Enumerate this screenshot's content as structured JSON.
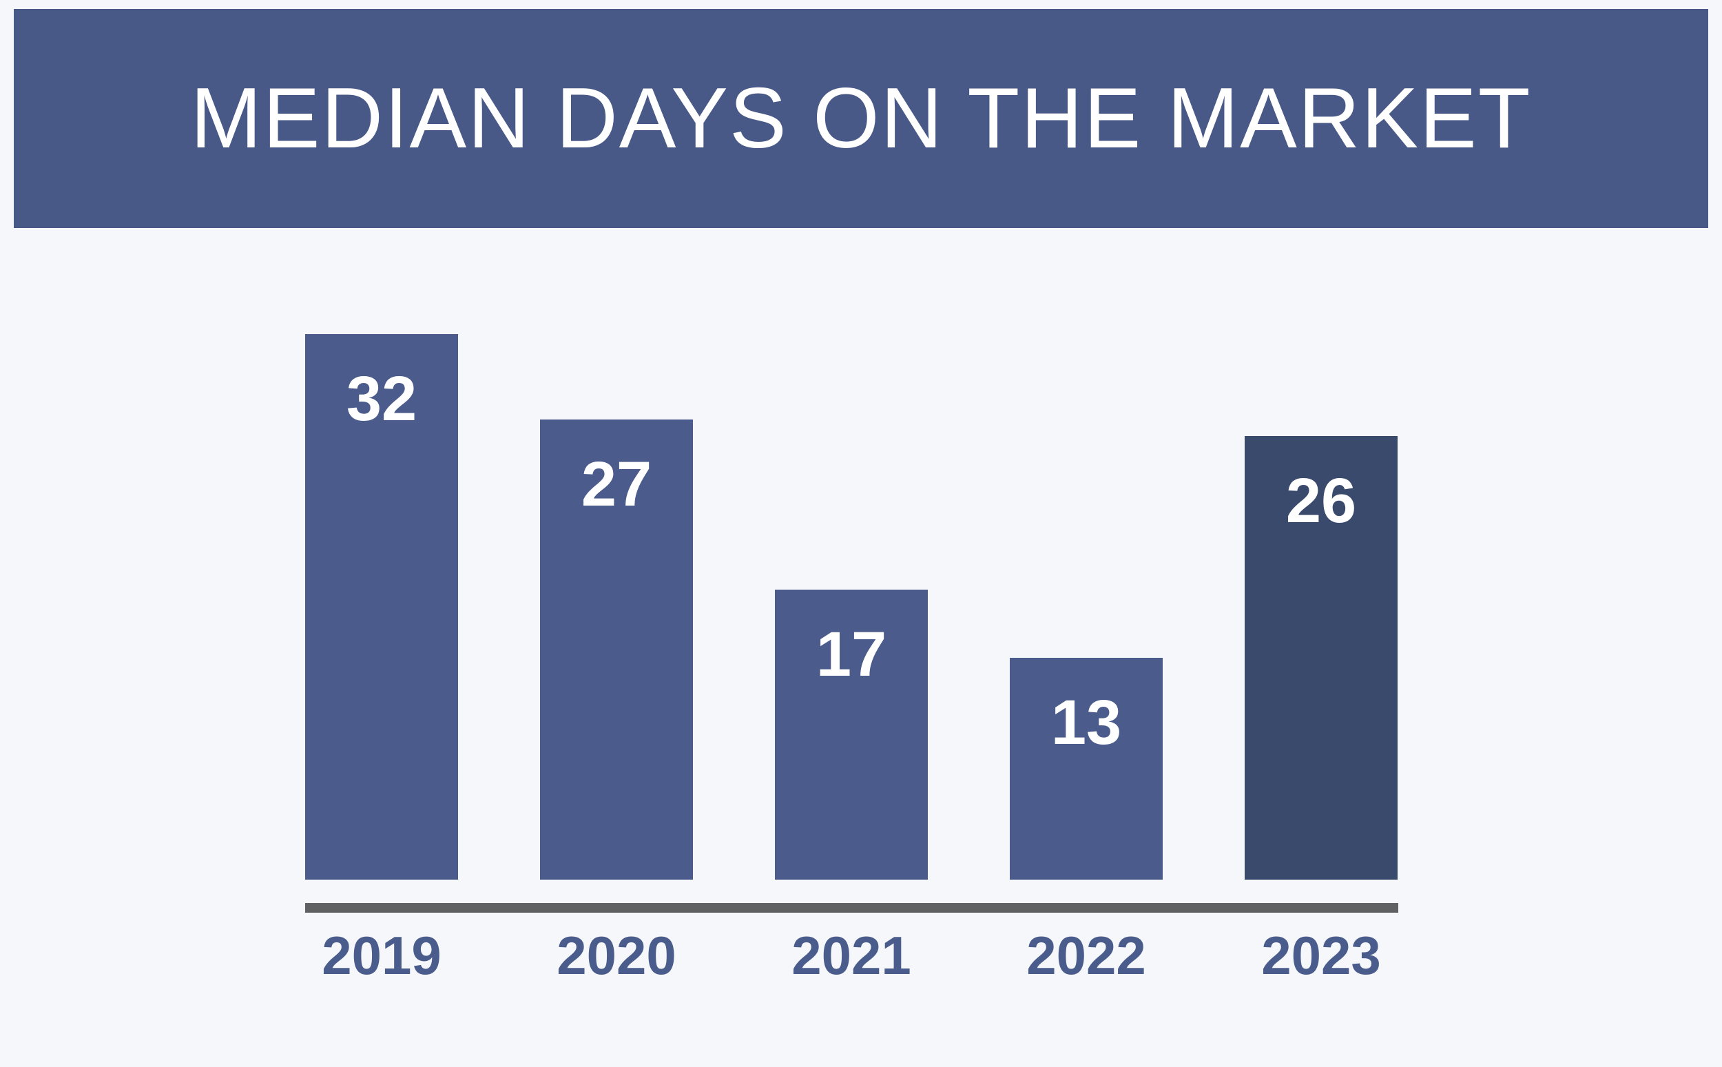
{
  "header": {
    "title": "MEDIAN DAYS ON THE MARKET"
  },
  "theme": {
    "page_bg": "#F5F7FA",
    "banner_bg": "#495987",
    "bar_color": "#4B5C8C",
    "bar_highlight_color": "#3A4A6C",
    "axis_color": "#5F6163",
    "tick_label_color": "#4A5C8C",
    "value_label_color": "#FFFFFF",
    "title_color": "#FFFFFF"
  },
  "chart_data": {
    "type": "bar",
    "title": "MEDIAN DAYS ON THE MARKET",
    "categories": [
      "2019",
      "2020",
      "2021",
      "2022",
      "2023"
    ],
    "values": [
      32,
      27,
      17,
      13,
      26
    ],
    "bar_colors": [
      "#4B5C8C",
      "#4B5C8C",
      "#4B5C8C",
      "#4B5C8C",
      "#3A4A6C"
    ],
    "highlighted_category": "2023",
    "xlabel": "",
    "ylabel": "",
    "ylim": [
      0,
      32
    ],
    "grid": false,
    "legend": false,
    "value_label_position": "inside-top"
  }
}
